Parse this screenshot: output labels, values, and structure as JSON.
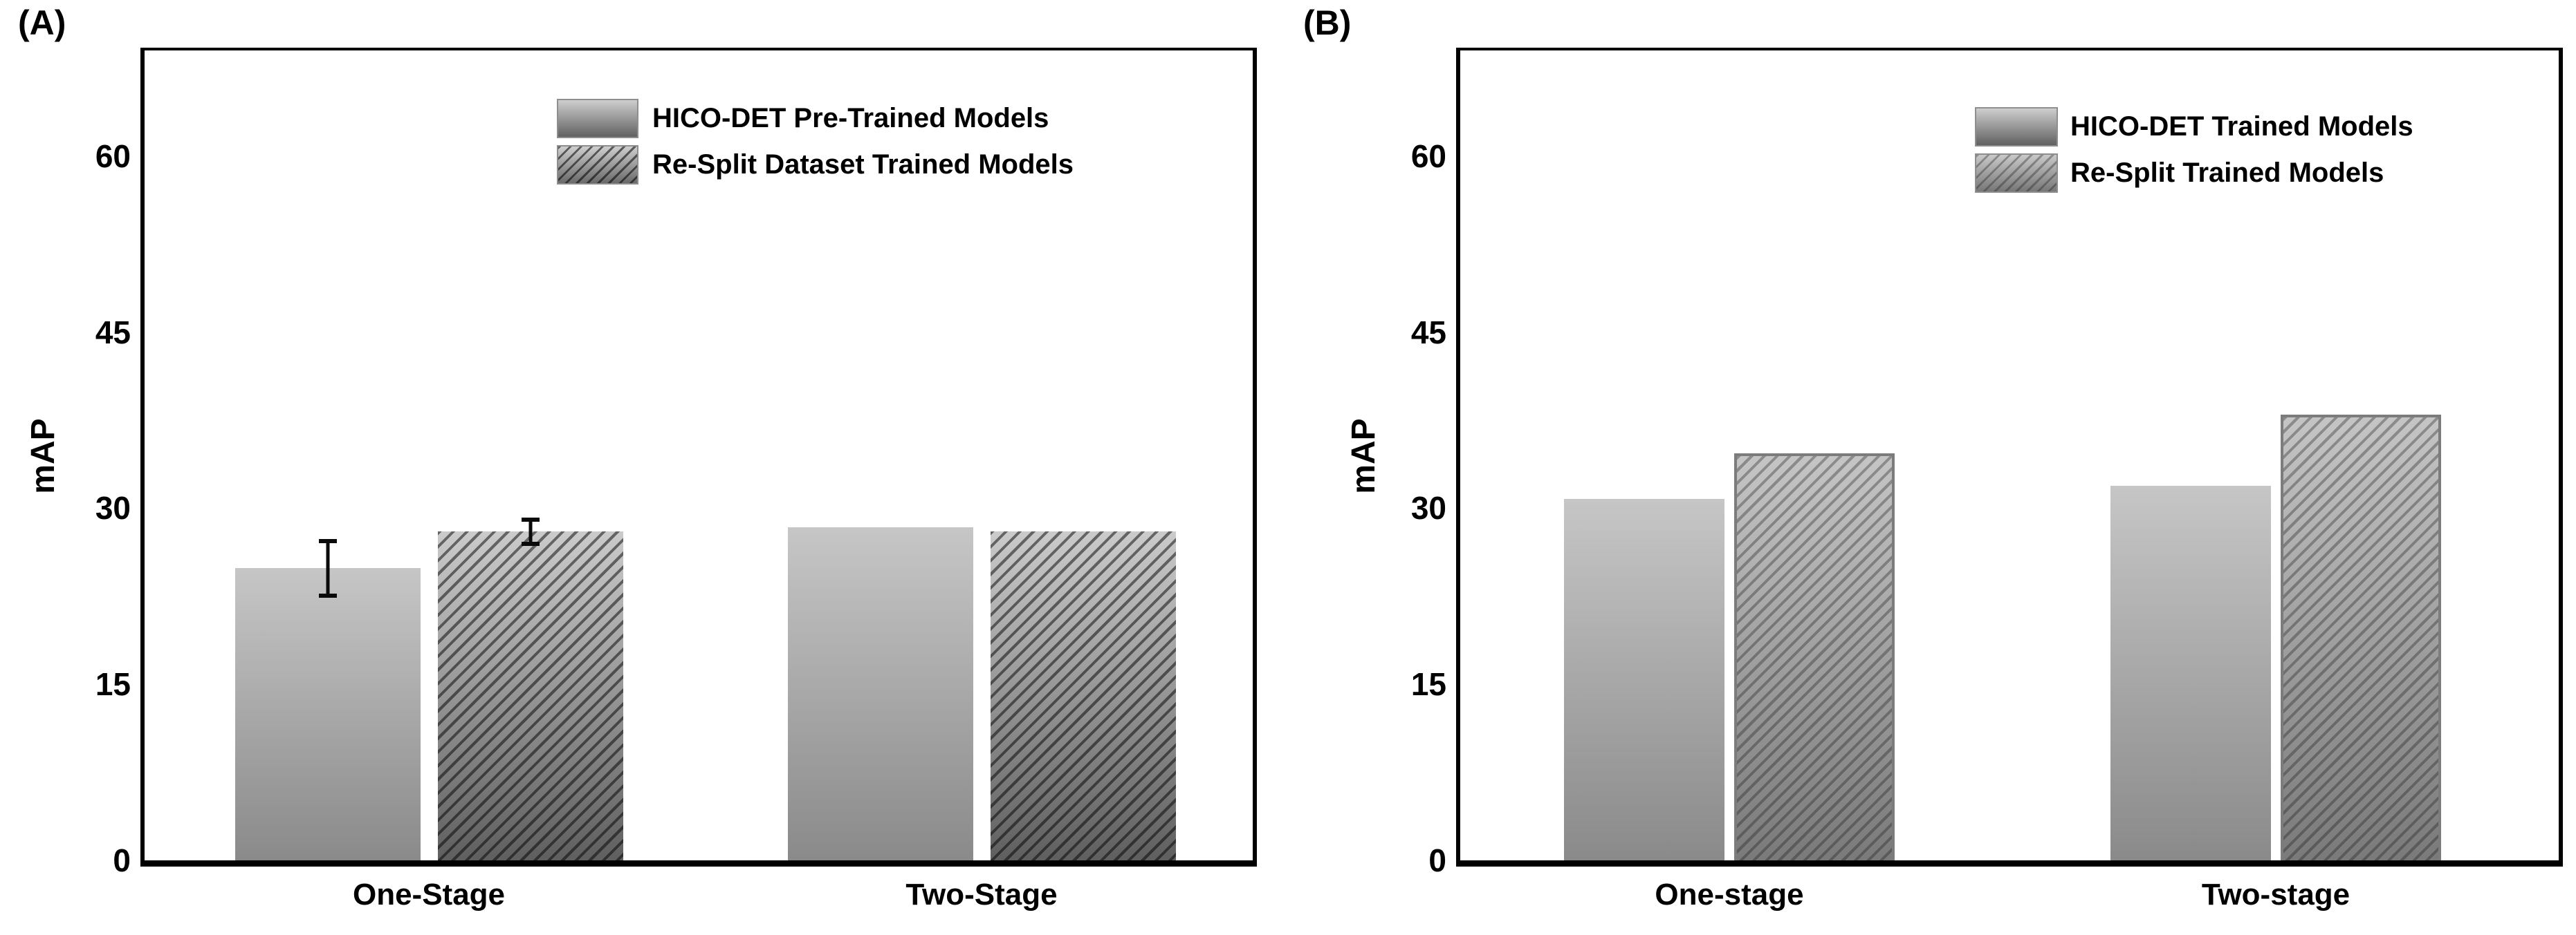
{
  "figure": {
    "background": "#ffffff"
  },
  "chart_data": [
    {
      "type": "bar",
      "panel_label": "(A)",
      "categories": [
        "One-Stage",
        "Two-Stage"
      ],
      "series": [
        {
          "name": "HICO-DET Pre-Trained Models",
          "values": [
            24.9,
            28.4
          ],
          "errors": [
            2.5,
            0
          ],
          "hatch": false
        },
        {
          "name": "Re-Split Dataset Trained Models",
          "values": [
            28.0,
            28.0
          ],
          "errors": [
            1.2,
            0
          ],
          "hatch": true
        }
      ],
      "xlabel": "",
      "ylabel": "mAP",
      "yticks": [
        0,
        15,
        30,
        45,
        60
      ],
      "ylim": [
        0,
        69
      ],
      "grid": false,
      "legend_position": "upper-right",
      "error_bars": "one-stage bars only"
    },
    {
      "type": "bar",
      "panel_label": "(B)",
      "categories": [
        "One-stage",
        "Two-stage"
      ],
      "series": [
        {
          "name": "HICO-DET Trained Models",
          "values": [
            30.8,
            31.9
          ],
          "errors": [
            0,
            0
          ],
          "hatch": false
        },
        {
          "name": "Re-Split Trained Models",
          "values": [
            34.7,
            38.0
          ],
          "errors": [
            0,
            0
          ],
          "hatch": true
        }
      ],
      "xlabel": "",
      "ylabel": "mAP",
      "yticks": [
        0,
        15,
        30,
        45,
        60
      ],
      "ylim": [
        0,
        69
      ],
      "grid": false,
      "legend_position": "upper-right"
    }
  ],
  "colors": {
    "text": "#000000",
    "axis": "#000000",
    "bar_gradient_top": "#c6c6c6",
    "bar_gradient_bottom": "#8a8a8a",
    "hatch_line": "#2a2a2a"
  }
}
